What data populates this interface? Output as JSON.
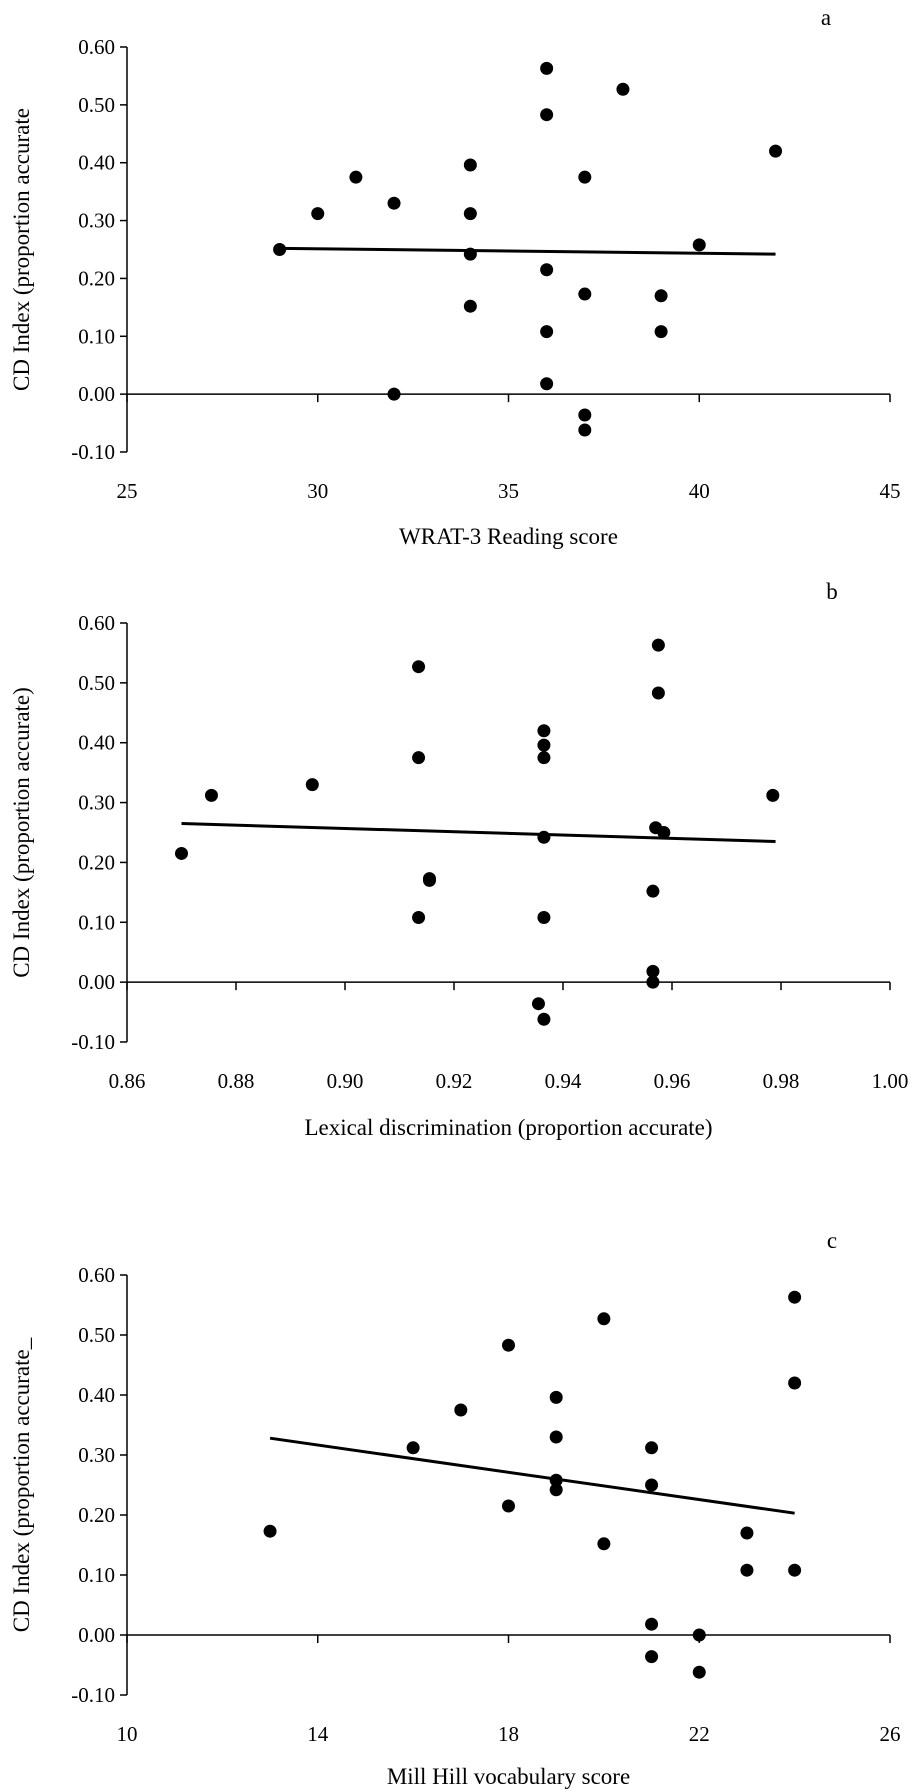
{
  "chart_data": [
    {
      "type": "scatter",
      "panel_label": "a",
      "xlabel": "WRAT-3 Reading score",
      "ylabel": "CD Index (proportion accurate",
      "xlim": [
        25,
        45
      ],
      "ylim": [
        -0.1,
        0.6
      ],
      "x_ticks": [
        25,
        30,
        35,
        40,
        45
      ],
      "x_tick_labels": [
        "25",
        "30",
        "35",
        "40",
        "45"
      ],
      "y_ticks": [
        -0.1,
        0,
        0.1,
        0.2,
        0.3,
        0.4,
        0.5,
        0.6
      ],
      "y_tick_labels": [
        "-0.10",
        "0.00",
        "0.10",
        "0.20",
        "0.30",
        "0.40",
        "0.50",
        "0.60"
      ],
      "grid": false,
      "trendline": {
        "x": [
          29,
          42
        ],
        "y": [
          0.252,
          0.242
        ]
      },
      "points": {
        "x": [
          29,
          30,
          31,
          32,
          32,
          34,
          34,
          34,
          34,
          36,
          36,
          36,
          36,
          36,
          37,
          37,
          37,
          37,
          38,
          39,
          39,
          40,
          42
        ],
        "y": [
          0.25,
          0.312,
          0.375,
          0.33,
          0.0,
          0.396,
          0.312,
          0.242,
          0.152,
          0.563,
          0.483,
          0.215,
          0.108,
          0.018,
          0.375,
          0.173,
          -0.036,
          -0.062,
          0.527,
          0.17,
          0.108,
          0.258,
          0.42
        ]
      }
    },
    {
      "type": "scatter",
      "panel_label": "b",
      "xlabel": "Lexical discrimination (proportion accurate)",
      "ylabel": "CD Index (proportion accurate)",
      "xlim": [
        0.86,
        1.0
      ],
      "ylim": [
        -0.1,
        0.6
      ],
      "x_ticks": [
        0.86,
        0.88,
        0.9,
        0.92,
        0.94,
        0.96,
        0.98,
        1.0
      ],
      "x_tick_labels": [
        "0.86",
        "0.88",
        "0.90",
        "0.92",
        "0.94",
        "0.96",
        "0.98",
        "1.00"
      ],
      "y_ticks": [
        -0.1,
        0,
        0.1,
        0.2,
        0.3,
        0.4,
        0.5,
        0.6
      ],
      "y_tick_labels": [
        "-0.10",
        "0.00",
        "0.10",
        "0.20",
        "0.30",
        "0.40",
        "0.50",
        "0.60"
      ],
      "grid": false,
      "trendline": {
        "x": [
          0.87,
          0.979
        ],
        "y": [
          0.265,
          0.235
        ]
      },
      "points": {
        "x": [
          0.87,
          0.8755,
          0.894,
          0.9135,
          0.9135,
          0.9135,
          0.9155,
          0.9155,
          0.9355,
          0.9365,
          0.9365,
          0.9365,
          0.9365,
          0.9365,
          0.9365,
          0.957,
          0.9575,
          0.9575,
          0.9565,
          0.9565,
          0.9565,
          0.9585,
          0.9785
        ],
        "y": [
          0.215,
          0.312,
          0.33,
          0.527,
          0.375,
          0.108,
          0.173,
          0.17,
          -0.036,
          0.42,
          0.396,
          0.375,
          0.242,
          0.108,
          -0.062,
          0.258,
          0.563,
          0.483,
          0.152,
          0.018,
          0.0,
          0.25,
          0.312
        ]
      }
    },
    {
      "type": "scatter",
      "panel_label": "c",
      "xlabel": "Mill Hill vocabulary score",
      "ylabel": "CD Index (proportion accurate_",
      "xlim": [
        10,
        26
      ],
      "ylim": [
        -0.1,
        0.6
      ],
      "x_ticks": [
        10,
        14,
        18,
        22,
        26
      ],
      "x_tick_labels": [
        "10",
        "14",
        "18",
        "22",
        "26"
      ],
      "y_ticks": [
        -0.1,
        0,
        0.1,
        0.2,
        0.3,
        0.4,
        0.5,
        0.6
      ],
      "y_tick_labels": [
        "-0.10",
        "0.00",
        "0.10",
        "0.20",
        "0.30",
        "0.40",
        "0.50",
        "0.60"
      ],
      "grid": false,
      "trendline": {
        "x": [
          13,
          24
        ],
        "y": [
          0.328,
          0.203
        ]
      },
      "points": {
        "x": [
          13,
          16,
          17,
          18,
          18,
          19,
          19,
          19,
          19,
          20,
          20,
          21,
          21,
          21,
          21,
          22,
          22,
          23,
          23,
          24,
          24,
          24
        ],
        "y": [
          0.173,
          0.312,
          0.375,
          0.483,
          0.215,
          0.396,
          0.33,
          0.258,
          0.242,
          0.527,
          0.152,
          0.312,
          0.25,
          0.018,
          -0.036,
          0.0,
          -0.062,
          0.17,
          0.108,
          0.563,
          0.42,
          0.108
        ]
      }
    }
  ]
}
